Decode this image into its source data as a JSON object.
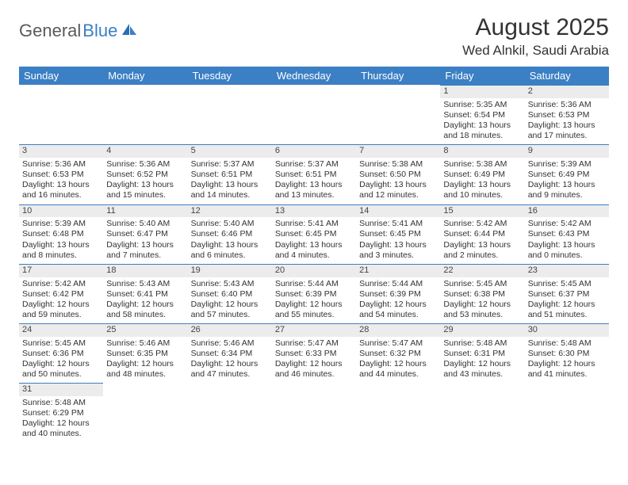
{
  "logo": {
    "part1": "General",
    "part2": "Blue"
  },
  "title": "August 2025",
  "location": "Wed Alnkil, Saudi Arabia",
  "colors": {
    "header_bg": "#3b7fc4",
    "header_fg": "#ffffff",
    "daynum_bg": "#ececec",
    "row_border": "#3b7fc4",
    "text": "#333333",
    "logo_gray": "#5a5a5a",
    "logo_blue": "#3b7fc4"
  },
  "weekdays": [
    "Sunday",
    "Monday",
    "Tuesday",
    "Wednesday",
    "Thursday",
    "Friday",
    "Saturday"
  ],
  "weeks": [
    [
      null,
      null,
      null,
      null,
      null,
      {
        "n": "1",
        "sr": "Sunrise: 5:35 AM",
        "ss": "Sunset: 6:54 PM",
        "dl": "Daylight: 13 hours and 18 minutes."
      },
      {
        "n": "2",
        "sr": "Sunrise: 5:36 AM",
        "ss": "Sunset: 6:53 PM",
        "dl": "Daylight: 13 hours and 17 minutes."
      }
    ],
    [
      {
        "n": "3",
        "sr": "Sunrise: 5:36 AM",
        "ss": "Sunset: 6:53 PM",
        "dl": "Daylight: 13 hours and 16 minutes."
      },
      {
        "n": "4",
        "sr": "Sunrise: 5:36 AM",
        "ss": "Sunset: 6:52 PM",
        "dl": "Daylight: 13 hours and 15 minutes."
      },
      {
        "n": "5",
        "sr": "Sunrise: 5:37 AM",
        "ss": "Sunset: 6:51 PM",
        "dl": "Daylight: 13 hours and 14 minutes."
      },
      {
        "n": "6",
        "sr": "Sunrise: 5:37 AM",
        "ss": "Sunset: 6:51 PM",
        "dl": "Daylight: 13 hours and 13 minutes."
      },
      {
        "n": "7",
        "sr": "Sunrise: 5:38 AM",
        "ss": "Sunset: 6:50 PM",
        "dl": "Daylight: 13 hours and 12 minutes."
      },
      {
        "n": "8",
        "sr": "Sunrise: 5:38 AM",
        "ss": "Sunset: 6:49 PM",
        "dl": "Daylight: 13 hours and 10 minutes."
      },
      {
        "n": "9",
        "sr": "Sunrise: 5:39 AM",
        "ss": "Sunset: 6:49 PM",
        "dl": "Daylight: 13 hours and 9 minutes."
      }
    ],
    [
      {
        "n": "10",
        "sr": "Sunrise: 5:39 AM",
        "ss": "Sunset: 6:48 PM",
        "dl": "Daylight: 13 hours and 8 minutes."
      },
      {
        "n": "11",
        "sr": "Sunrise: 5:40 AM",
        "ss": "Sunset: 6:47 PM",
        "dl": "Daylight: 13 hours and 7 minutes."
      },
      {
        "n": "12",
        "sr": "Sunrise: 5:40 AM",
        "ss": "Sunset: 6:46 PM",
        "dl": "Daylight: 13 hours and 6 minutes."
      },
      {
        "n": "13",
        "sr": "Sunrise: 5:41 AM",
        "ss": "Sunset: 6:45 PM",
        "dl": "Daylight: 13 hours and 4 minutes."
      },
      {
        "n": "14",
        "sr": "Sunrise: 5:41 AM",
        "ss": "Sunset: 6:45 PM",
        "dl": "Daylight: 13 hours and 3 minutes."
      },
      {
        "n": "15",
        "sr": "Sunrise: 5:42 AM",
        "ss": "Sunset: 6:44 PM",
        "dl": "Daylight: 13 hours and 2 minutes."
      },
      {
        "n": "16",
        "sr": "Sunrise: 5:42 AM",
        "ss": "Sunset: 6:43 PM",
        "dl": "Daylight: 13 hours and 0 minutes."
      }
    ],
    [
      {
        "n": "17",
        "sr": "Sunrise: 5:42 AM",
        "ss": "Sunset: 6:42 PM",
        "dl": "Daylight: 12 hours and 59 minutes."
      },
      {
        "n": "18",
        "sr": "Sunrise: 5:43 AM",
        "ss": "Sunset: 6:41 PM",
        "dl": "Daylight: 12 hours and 58 minutes."
      },
      {
        "n": "19",
        "sr": "Sunrise: 5:43 AM",
        "ss": "Sunset: 6:40 PM",
        "dl": "Daylight: 12 hours and 57 minutes."
      },
      {
        "n": "20",
        "sr": "Sunrise: 5:44 AM",
        "ss": "Sunset: 6:39 PM",
        "dl": "Daylight: 12 hours and 55 minutes."
      },
      {
        "n": "21",
        "sr": "Sunrise: 5:44 AM",
        "ss": "Sunset: 6:39 PM",
        "dl": "Daylight: 12 hours and 54 minutes."
      },
      {
        "n": "22",
        "sr": "Sunrise: 5:45 AM",
        "ss": "Sunset: 6:38 PM",
        "dl": "Daylight: 12 hours and 53 minutes."
      },
      {
        "n": "23",
        "sr": "Sunrise: 5:45 AM",
        "ss": "Sunset: 6:37 PM",
        "dl": "Daylight: 12 hours and 51 minutes."
      }
    ],
    [
      {
        "n": "24",
        "sr": "Sunrise: 5:45 AM",
        "ss": "Sunset: 6:36 PM",
        "dl": "Daylight: 12 hours and 50 minutes."
      },
      {
        "n": "25",
        "sr": "Sunrise: 5:46 AM",
        "ss": "Sunset: 6:35 PM",
        "dl": "Daylight: 12 hours and 48 minutes."
      },
      {
        "n": "26",
        "sr": "Sunrise: 5:46 AM",
        "ss": "Sunset: 6:34 PM",
        "dl": "Daylight: 12 hours and 47 minutes."
      },
      {
        "n": "27",
        "sr": "Sunrise: 5:47 AM",
        "ss": "Sunset: 6:33 PM",
        "dl": "Daylight: 12 hours and 46 minutes."
      },
      {
        "n": "28",
        "sr": "Sunrise: 5:47 AM",
        "ss": "Sunset: 6:32 PM",
        "dl": "Daylight: 12 hours and 44 minutes."
      },
      {
        "n": "29",
        "sr": "Sunrise: 5:48 AM",
        "ss": "Sunset: 6:31 PM",
        "dl": "Daylight: 12 hours and 43 minutes."
      },
      {
        "n": "30",
        "sr": "Sunrise: 5:48 AM",
        "ss": "Sunset: 6:30 PM",
        "dl": "Daylight: 12 hours and 41 minutes."
      }
    ],
    [
      {
        "n": "31",
        "sr": "Sunrise: 5:48 AM",
        "ss": "Sunset: 6:29 PM",
        "dl": "Daylight: 12 hours and 40 minutes."
      },
      null,
      null,
      null,
      null,
      null,
      null
    ]
  ]
}
